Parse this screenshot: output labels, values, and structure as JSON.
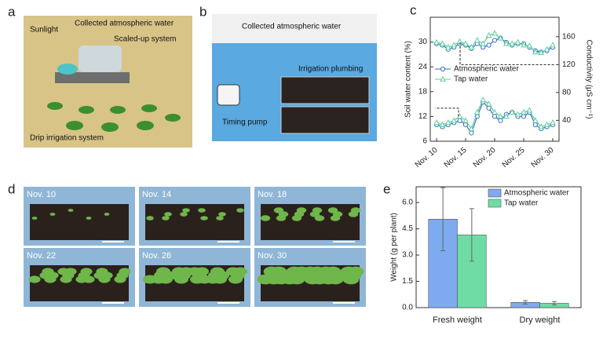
{
  "panels": {
    "a": {
      "letter": "a",
      "labels": [
        "Sunlight",
        "Collected atmospheric water",
        "Scaled-up system",
        "Drip irrigation system"
      ]
    },
    "b": {
      "letter": "b",
      "labels": [
        "Collected atmospheric water",
        "Irrigation plumbing",
        "Timing pump"
      ]
    },
    "c": {
      "letter": "c"
    },
    "d": {
      "letter": "d",
      "labels": [
        "Nov. 10",
        "Nov. 14",
        "Nov. 18",
        "Nov. 22",
        "Nov. 26",
        "Nov. 30"
      ]
    },
    "e": {
      "letter": "e"
    }
  },
  "chart_data": [
    {
      "type": "line",
      "ylabel": "Soil water content (%)",
      "y2label": "Conductivity (μS cm⁻¹)",
      "categories": [
        "Nov. 10",
        null,
        null,
        null,
        null,
        "Nov. 15",
        null,
        null,
        null,
        null,
        "Nov. 20",
        null,
        null,
        null,
        null,
        "Nov. 25",
        null,
        null,
        null,
        null,
        "Nov. 30"
      ],
      "ylim": [
        6,
        36
      ],
      "yticks": [
        6,
        12,
        18,
        24,
        30
      ],
      "y2lim": [
        10,
        188
      ],
      "y2ticks": [
        40,
        80,
        120,
        160
      ],
      "series": [
        {
          "name": "Atmospheric water",
          "color": "#3a6fc4",
          "marker": "circle",
          "values": [
            10,
            9.5,
            10,
            10.5,
            11,
            10,
            8,
            12,
            15.5,
            14,
            12,
            11,
            12.5,
            13,
            12,
            12,
            13,
            10,
            9,
            9.5,
            10
          ]
        },
        {
          "name": "Tap water",
          "color": "#5ccf9e",
          "marker": "triangle",
          "values": [
            10.5,
            10,
            10.5,
            11,
            12,
            11,
            9,
            13,
            16,
            15,
            13,
            12,
            12,
            13,
            12.5,
            13,
            13.5,
            11,
            9.5,
            10,
            10.5
          ]
        },
        {
          "color": "#3a6fc4",
          "marker": "circle",
          "axis": "y2",
          "values": [
            150,
            148,
            142,
            145,
            150,
            148,
            143,
            150,
            145,
            148,
            155,
            158,
            152,
            148,
            150,
            150,
            145,
            140,
            138,
            140,
            145
          ]
        },
        {
          "color": "#5ccf9e",
          "marker": "triangle",
          "axis": "y2",
          "values": [
            152,
            150,
            145,
            148,
            153,
            150,
            145,
            155,
            150,
            162,
            165,
            158,
            150,
            150,
            152,
            148,
            147,
            138,
            137,
            142,
            148
          ]
        }
      ]
    },
    {
      "type": "bar",
      "ylabel": "Weight (g per plant)",
      "categories": [
        "Fresh weight",
        "Dry weight"
      ],
      "ylim": [
        0,
        6.9
      ],
      "yticks": [
        {
          "value": 0,
          "label": "0.0"
        },
        {
          "value": 1.5,
          "label": "1.5"
        },
        {
          "value": 3,
          "label": "3.0"
        },
        {
          "value": 4.5,
          "label": "4.5"
        },
        {
          "value": 6,
          "label": "6.0"
        }
      ],
      "series": [
        {
          "name": "Atmospheric water",
          "color": "#7eaaf0",
          "values": [
            5.05,
            0.3
          ],
          "errors": [
            1.8,
            0.1
          ]
        },
        {
          "name": "Tap water",
          "color": "#6fdca5",
          "values": [
            4.15,
            0.25
          ],
          "errors": [
            1.5,
            0.1
          ]
        }
      ]
    }
  ]
}
